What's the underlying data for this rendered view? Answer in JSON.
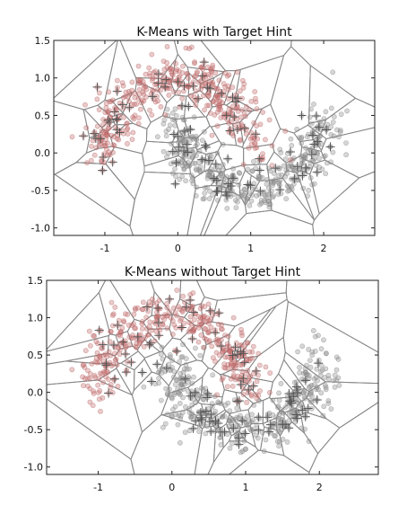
{
  "chart_data": [
    {
      "type": "scatter",
      "title": "K-Means with Target Hint",
      "xlabel": "",
      "ylabel": "",
      "xlim": [
        -1.7,
        2.7
      ],
      "ylim": [
        -1.1,
        1.5
      ],
      "xticks": [
        "-1",
        "0",
        "1",
        "2"
      ],
      "xtick_values": [
        -1,
        0,
        1,
        2
      ],
      "yticks": [
        "1.5",
        "1.0",
        "0.5",
        "0.0",
        "-0.5",
        "-1.0"
      ],
      "ytick_values": [
        1.5,
        1.0,
        0.5,
        0.0,
        -0.5,
        -1.0
      ],
      "grid": false,
      "series": [
        {
          "color": "#c06a6a",
          "marker": "circle",
          "seed": 11
        },
        {
          "color": "#8a8a8a",
          "marker": "circle",
          "seed": 29
        }
      ],
      "centroids": {
        "marker": "plus",
        "color": "#555555"
      },
      "voronoi_edges": {
        "color": "#888888",
        "style": "solid"
      }
    },
    {
      "type": "scatter",
      "title": "K-Means without Target Hint",
      "xlabel": "",
      "ylabel": "",
      "xlim": [
        -1.7,
        2.8
      ],
      "ylim": [
        -1.1,
        1.5
      ],
      "xticks": [
        "-1",
        "0",
        "1",
        "2"
      ],
      "xtick_values": [
        -1,
        0,
        1,
        2
      ],
      "yticks": [
        "1.5",
        "1.0",
        "0.5",
        "0.0",
        "-0.5",
        "-1.0"
      ],
      "ytick_values": [
        1.5,
        1.0,
        0.5,
        0.0,
        -0.5,
        -1.0
      ],
      "grid": false,
      "series": [
        {
          "color": "#c06a6a",
          "marker": "circle",
          "seed": 47
        },
        {
          "color": "#8a8a8a",
          "marker": "circle",
          "seed": 83
        }
      ],
      "centroids": {
        "marker": "plus",
        "color": "#555555"
      },
      "voronoi_edges": {
        "color": "#888888",
        "style": "solid"
      }
    }
  ]
}
